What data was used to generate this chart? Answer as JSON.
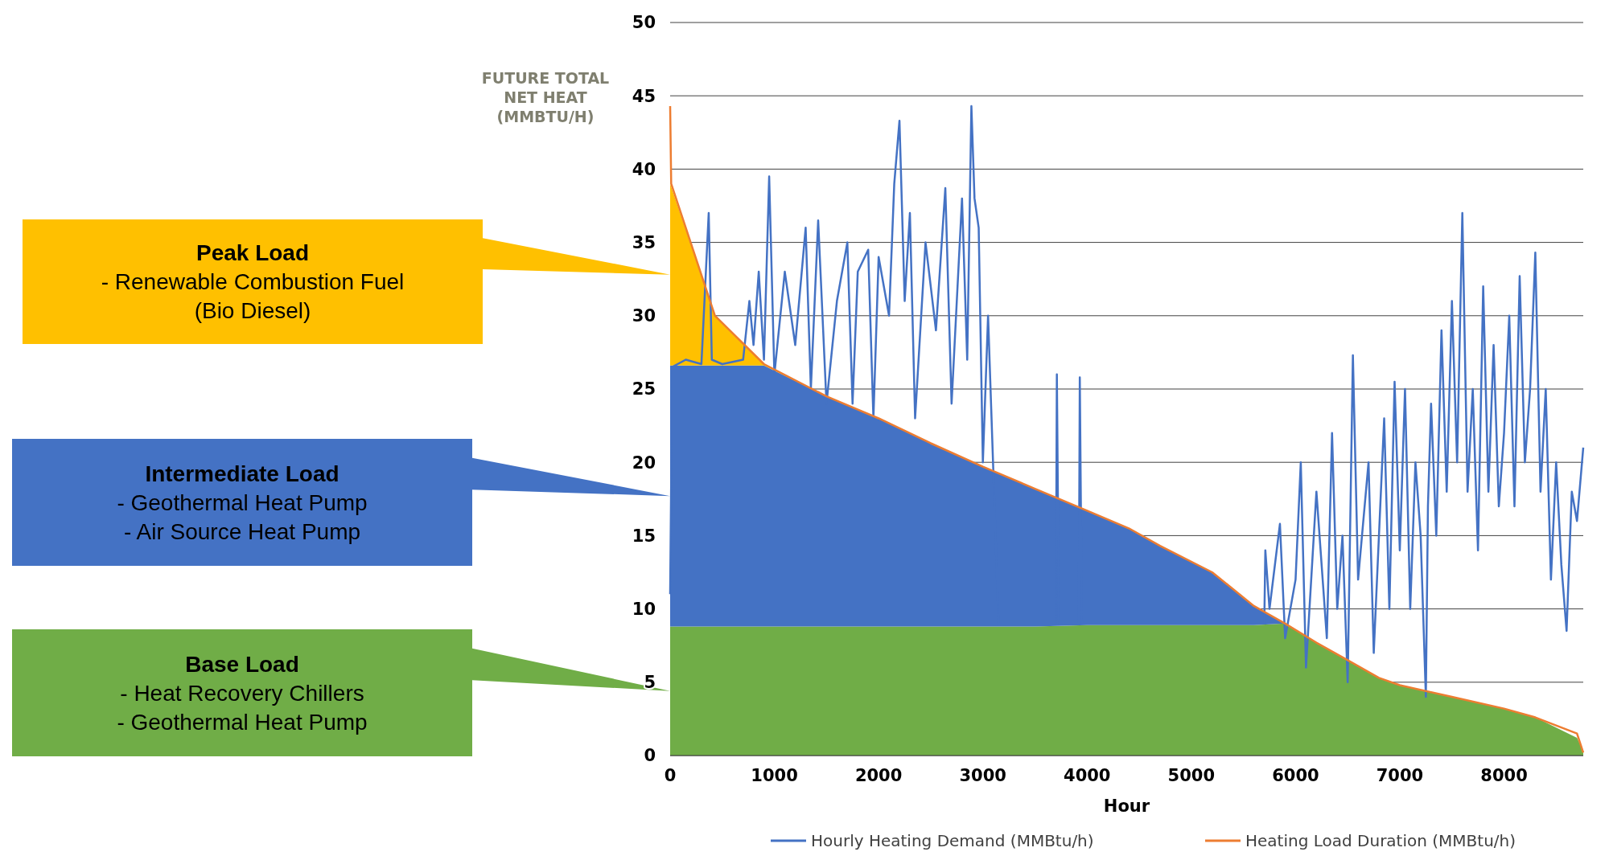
{
  "chart_data": {
    "type": "area",
    "stacked": true,
    "xlabel": "Hour",
    "ylabel": "FUTURE TOTAL NET HEAT (MMBTU/H)",
    "xlim": [
      0,
      8760
    ],
    "ylim": [
      0,
      50
    ],
    "xticks": [
      0,
      1000,
      2000,
      3000,
      4000,
      5000,
      6000,
      7000,
      8000
    ],
    "yticks": [
      0,
      5,
      10,
      15,
      20,
      25,
      30,
      35,
      40,
      45,
      50
    ],
    "grid": "y",
    "legend": "bottom",
    "x": [
      0,
      430,
      900,
      1500,
      2000,
      2500,
      3000,
      3500,
      4000,
      4400,
      4700,
      5200,
      5600,
      5900,
      6200,
      6500,
      6800,
      7000,
      7500,
      8000,
      8300,
      8700,
      8760
    ],
    "series": [
      {
        "color": "#70ad47",
        "values": [
          8.8,
          8.8,
          8.8,
          8.8,
          8.8,
          8.8,
          8.8,
          8.8,
          8.9,
          8.9,
          8.9,
          8.9,
          8.9,
          9,
          7.7,
          6.5,
          5.3,
          4.8,
          4,
          3.2,
          2.6,
          1.2,
          0.3
        ]
      },
      {
        "color": "#4472c4",
        "values": [
          17.8,
          17.8,
          17.8,
          15.7,
          14.2,
          12.5,
          10.9,
          9.4,
          7.8,
          6.6,
          5.4,
          3.6,
          1.3,
          0,
          0,
          0,
          0,
          0,
          0,
          0,
          0,
          0,
          0
        ]
      },
      {
        "color": "#ffc000",
        "values": [
          12.4,
          3.4,
          0.1,
          0,
          0,
          0,
          0,
          0,
          0,
          0,
          0,
          0,
          0,
          0,
          0,
          0,
          0,
          0,
          0,
          0,
          0,
          0,
          0
        ]
      },
      {
        "type": "line",
        "name": "Hourly Heating Demand (MMBtu/h)",
        "color": "#4472c4",
        "x": [
          0,
          20,
          150,
          300,
          370,
          400,
          500,
          700,
          760,
          800,
          850,
          900,
          950,
          1000,
          1100,
          1200,
          1300,
          1350,
          1420,
          1500,
          1600,
          1700,
          1750,
          1800,
          1900,
          1950,
          2000,
          2100,
          2150,
          2200,
          2250,
          2300,
          2350,
          2450,
          2550,
          2640,
          2700,
          2800,
          2850,
          2890,
          2920,
          2960,
          3000,
          3050,
          3100,
          3150,
          3700,
          3710,
          3730,
          3920,
          3930,
          3950,
          5700,
          5710,
          5750,
          5850,
          5900,
          6000,
          6050,
          6100,
          6200,
          6300,
          6350,
          6400,
          6450,
          6500,
          6550,
          6600,
          6700,
          6750,
          6850,
          6900,
          6950,
          7000,
          7050,
          7100,
          7150,
          7200,
          7250,
          7270,
          7300,
          7350,
          7400,
          7450,
          7500,
          7550,
          7600,
          7650,
          7700,
          7750,
          7800,
          7850,
          7900,
          7950,
          8000,
          8050,
          8100,
          8150,
          8200,
          8250,
          8300,
          8350,
          8400,
          8450,
          8500,
          8550,
          8600,
          8650,
          8700,
          8760
        ],
        "values": [
          11,
          26.5,
          27,
          26.7,
          37,
          27,
          26.7,
          27,
          31,
          28,
          33,
          27,
          39.5,
          26,
          33,
          28,
          36,
          25,
          36.5,
          24,
          31,
          35,
          24,
          33,
          34.5,
          23,
          34,
          30,
          39,
          43.3,
          31,
          37,
          23,
          35,
          29,
          38.7,
          24,
          38,
          27,
          44.3,
          38,
          36,
          20,
          30,
          19.5,
          9,
          9,
          26,
          9,
          9,
          25.8,
          9,
          9,
          14,
          10,
          15.8,
          8,
          12,
          20,
          6,
          18,
          8,
          22,
          10,
          15,
          5,
          27.3,
          12,
          20,
          7,
          23,
          10,
          25.5,
          14,
          25,
          10,
          20,
          15,
          4,
          17,
          24,
          15,
          29,
          18,
          31,
          20,
          37,
          18,
          25,
          14,
          32,
          18,
          28,
          17,
          22,
          30,
          17,
          32.7,
          20,
          25,
          34.3,
          18,
          25,
          12,
          20,
          13,
          8.5,
          18,
          16,
          21
        ]
      },
      {
        "type": "line",
        "name": "Heating Load Duration (MMBtu/h)",
        "color": "#ed7d31",
        "x": [
          0,
          10,
          430,
          900,
          1500,
          2000,
          2500,
          3000,
          3500,
          4000,
          4400,
          4700,
          5200,
          5600,
          5900,
          6200,
          6500,
          6800,
          7000,
          7500,
          8000,
          8300,
          8700,
          8760
        ],
        "values": [
          44.3,
          39,
          30,
          26.7,
          24.5,
          23,
          21.3,
          19.7,
          18.2,
          16.7,
          15.5,
          14.3,
          12.5,
          10.2,
          9,
          7.7,
          6.5,
          5.3,
          4.8,
          4,
          3.2,
          2.6,
          1.5,
          0.2
        ]
      }
    ],
    "annotations": [
      "Peak Load\n- Renewable Combustion Fuel\n(Bio Diesel)",
      "Intermediate Load\n- Geothermal Heat Pump\n- Air Source Heat Pump",
      "Base Load\n- Heat Recovery Chillers\n- Geothermal Heat Pump"
    ]
  }
}
